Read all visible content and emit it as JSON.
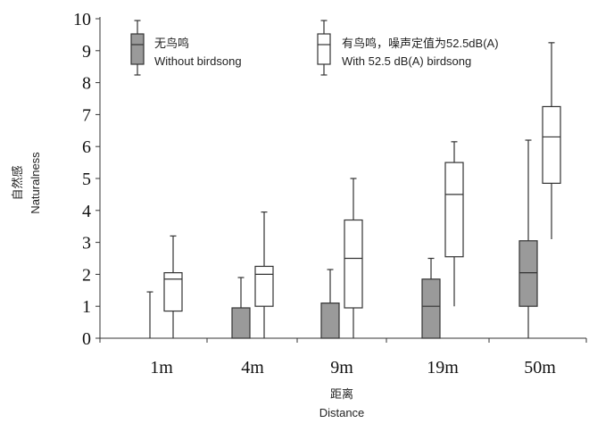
{
  "chart_data": {
    "type": "boxplot",
    "categories": [
      "1m",
      "4m",
      "9m",
      "19m",
      "50m"
    ],
    "ylim": [
      0,
      10
    ],
    "yticks": [
      "0",
      "1",
      "2",
      "3",
      "4",
      "5",
      "6",
      "7",
      "8",
      "9",
      "10"
    ],
    "ylabel_cn": "自然感",
    "ylabel_en": "Naturalness",
    "xlabel_cn": "距离",
    "xlabel_en": "Distance",
    "grid": false,
    "legend_placement": "top",
    "series": [
      {
        "name_cn": "无鸟鸣",
        "name_en": "Without birdsong",
        "color": "#9a9a9a",
        "boxes": [
          {
            "min": 0,
            "q1": 0,
            "median": 0,
            "q3": 0,
            "max": 1.45
          },
          {
            "min": 0,
            "q1": 0,
            "median": 0,
            "q3": 0.95,
            "max": 1.9
          },
          {
            "min": 0,
            "q1": 0,
            "median": 0,
            "q3": 1.1,
            "max": 2.15
          },
          {
            "min": 0,
            "q1": 0,
            "median": 1.0,
            "q3": 1.85,
            "max": 2.5
          },
          {
            "min": 0,
            "q1": 1.0,
            "median": 2.05,
            "q3": 3.05,
            "max": 6.2
          }
        ]
      },
      {
        "name_cn": "有鸟鸣，噪声定值为52.5dB(A)",
        "name_en": "With 52.5 dB(A) birdsong",
        "color": "#ffffff",
        "boxes": [
          {
            "min": 0,
            "q1": 0.85,
            "median": 1.85,
            "q3": 2.05,
            "max": 3.2
          },
          {
            "min": 0,
            "q1": 1.0,
            "median": 2.0,
            "q3": 2.25,
            "max": 3.95
          },
          {
            "min": 0,
            "q1": 0.95,
            "median": 2.5,
            "q3": 3.7,
            "max": 5.0
          },
          {
            "min": 1.0,
            "q1": 2.55,
            "median": 4.5,
            "q3": 5.5,
            "max": 6.15
          },
          {
            "min": 3.1,
            "q1": 4.85,
            "median": 6.3,
            "q3": 7.25,
            "max": 9.25
          }
        ]
      }
    ]
  }
}
